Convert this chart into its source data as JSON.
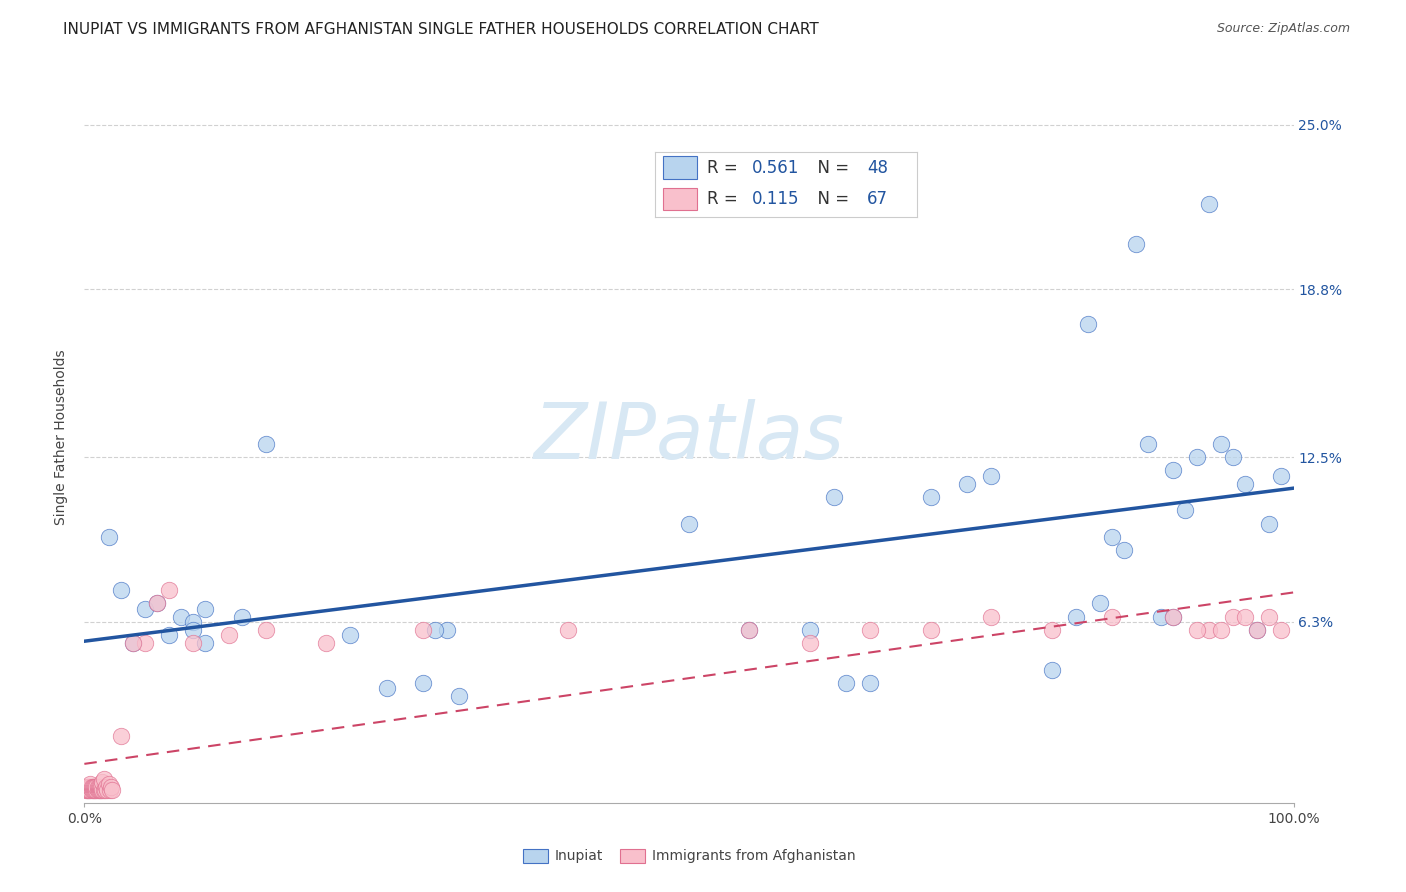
{
  "title": "INUPIAT VS IMMIGRANTS FROM AFGHANISTAN SINGLE FATHER HOUSEHOLDS CORRELATION CHART",
  "source": "Source: ZipAtlas.com",
  "ylabel": "Single Father Households",
  "ytick_labels": [
    "6.3%",
    "12.5%",
    "18.8%",
    "25.0%"
  ],
  "ytick_values": [
    0.063,
    0.125,
    0.188,
    0.25
  ],
  "xlim": [
    0.0,
    1.0
  ],
  "ylim": [
    -0.005,
    0.27
  ],
  "inupiat_color": "#b8d4ee",
  "inupiat_edge_color": "#4472c4",
  "inupiat_line_color": "#2255a0",
  "afghanistan_color": "#f9c0cc",
  "afghanistan_edge_color": "#e07090",
  "afghanistan_line_color": "#cc4466",
  "background_color": "#ffffff",
  "watermark_color": "#d8e8f4",
  "title_fontsize": 11,
  "axis_label_fontsize": 10,
  "tick_fontsize": 10,
  "source_fontsize": 9,
  "legend_fontsize": 12,
  "inupiat_x": [
    0.02,
    0.05,
    0.06,
    0.07,
    0.08,
    0.09,
    0.09,
    0.1,
    0.1,
    0.13,
    0.15,
    0.22,
    0.25,
    0.28,
    0.3,
    0.5,
    0.55,
    0.62,
    0.65,
    0.7,
    0.73,
    0.75,
    0.8,
    0.82,
    0.83,
    0.84,
    0.85,
    0.86,
    0.87,
    0.88,
    0.89,
    0.9,
    0.91,
    0.92,
    0.93,
    0.94,
    0.95,
    0.96,
    0.97,
    0.98,
    0.99,
    0.03,
    0.04,
    0.29,
    0.31,
    0.6,
    0.63,
    0.9
  ],
  "inupiat_y": [
    0.095,
    0.068,
    0.07,
    0.058,
    0.065,
    0.063,
    0.06,
    0.068,
    0.055,
    0.065,
    0.13,
    0.058,
    0.038,
    0.04,
    0.06,
    0.1,
    0.06,
    0.11,
    0.04,
    0.11,
    0.115,
    0.118,
    0.045,
    0.065,
    0.175,
    0.07,
    0.095,
    0.09,
    0.205,
    0.13,
    0.065,
    0.12,
    0.105,
    0.125,
    0.22,
    0.13,
    0.125,
    0.115,
    0.06,
    0.1,
    0.118,
    0.075,
    0.055,
    0.06,
    0.035,
    0.06,
    0.04,
    0.065
  ],
  "afghanistan_x_cluster": [
    0.001,
    0.001,
    0.002,
    0.002,
    0.003,
    0.003,
    0.004,
    0.004,
    0.005,
    0.005,
    0.005,
    0.006,
    0.006,
    0.007,
    0.007,
    0.008,
    0.008,
    0.009,
    0.009,
    0.01,
    0.01,
    0.011,
    0.011,
    0.012,
    0.012,
    0.013,
    0.013,
    0.014,
    0.014,
    0.015,
    0.015,
    0.016,
    0.016,
    0.017,
    0.018,
    0.019,
    0.02,
    0.021,
    0.022,
    0.023
  ],
  "afghanistan_y_cluster": [
    0.0,
    0.001,
    0.0,
    0.001,
    0.0,
    0.001,
    0.0,
    0.001,
    0.0,
    0.001,
    0.002,
    0.0,
    0.001,
    0.0,
    0.001,
    0.0,
    0.001,
    0.0,
    0.001,
    0.0,
    0.001,
    0.0,
    0.001,
    0.0,
    0.001,
    0.0,
    0.001,
    0.0,
    0.001,
    0.0,
    0.003,
    0.0,
    0.004,
    0.0,
    0.001,
    0.0,
    0.002,
    0.0,
    0.001,
    0.0
  ],
  "afghanistan_x_spread": [
    0.03,
    0.05,
    0.06,
    0.07,
    0.09,
    0.12,
    0.2,
    0.55,
    0.65,
    0.7,
    0.8,
    0.85,
    0.9,
    0.93,
    0.95,
    0.96,
    0.98,
    0.99,
    0.04,
    0.15,
    0.28,
    0.4,
    0.6,
    0.75,
    0.92,
    0.94,
    0.97
  ],
  "afghanistan_y_spread": [
    0.02,
    0.055,
    0.07,
    0.075,
    0.055,
    0.058,
    0.055,
    0.06,
    0.06,
    0.06,
    0.06,
    0.065,
    0.065,
    0.06,
    0.065,
    0.065,
    0.065,
    0.06,
    0.055,
    0.06,
    0.06,
    0.06,
    0.055,
    0.065,
    0.06,
    0.06,
    0.06
  ]
}
